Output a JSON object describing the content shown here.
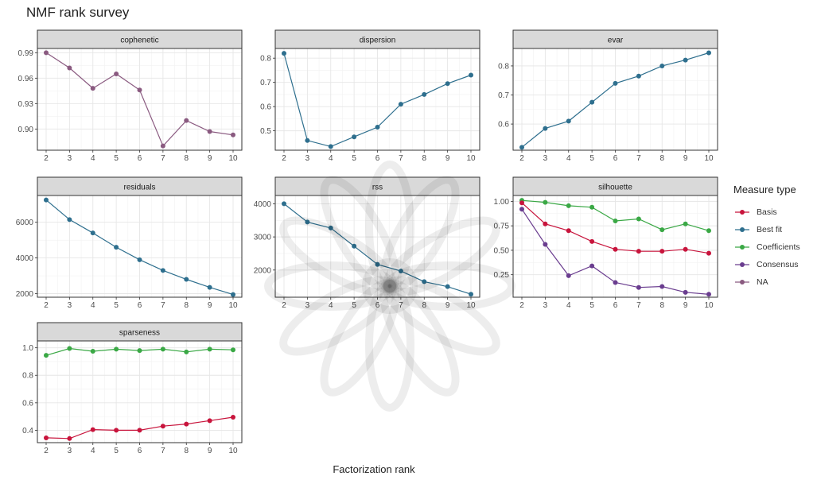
{
  "chart_data": {
    "type": "line",
    "title": "NMF rank survey",
    "xlabel": "Factorization rank",
    "x": [
      2,
      3,
      4,
      5,
      6,
      7,
      8,
      9,
      10
    ],
    "legend": {
      "title": "Measure type",
      "position": "right",
      "entries": [
        {
          "name": "Basis",
          "color": "#c8143c"
        },
        {
          "name": "Best fit",
          "color": "#2e6f8e"
        },
        {
          "name": "Coefficients",
          "color": "#3aa845"
        },
        {
          "name": "Consensus",
          "color": "#6a3d8f"
        },
        {
          "name": "NA",
          "color": "#8a5a80"
        }
      ]
    },
    "grid": true,
    "panels": [
      {
        "name": "cophenetic",
        "ylim": [
          0.875,
          0.995
        ],
        "yticks": [
          0.9,
          0.93,
          0.96,
          0.99
        ],
        "yticklabels": [
          "0.90",
          "0.93",
          "0.96",
          "0.99"
        ],
        "series": [
          {
            "type": "NA",
            "values": [
              0.99,
              0.972,
              0.948,
              0.965,
              0.946,
              0.88,
              0.91,
              0.897,
              0.893
            ]
          }
        ]
      },
      {
        "name": "dispersion",
        "ylim": [
          0.42,
          0.84
        ],
        "yticks": [
          0.5,
          0.6,
          0.7,
          0.8
        ],
        "yticklabels": [
          "0.5",
          "0.6",
          "0.7",
          "0.8"
        ],
        "series": [
          {
            "type": "Best fit",
            "values": [
              0.82,
              0.46,
              0.435,
              0.475,
              0.515,
              0.61,
              0.65,
              0.695,
              0.73
            ]
          }
        ]
      },
      {
        "name": "evar",
        "ylim": [
          0.51,
          0.86
        ],
        "yticks": [
          0.6,
          0.7,
          0.8
        ],
        "yticklabels": [
          "0.6",
          "0.7",
          "0.8"
        ],
        "series": [
          {
            "type": "Best fit",
            "values": [
              0.52,
              0.585,
              0.61,
              0.675,
              0.74,
              0.765,
              0.8,
              0.82,
              0.845
            ]
          }
        ]
      },
      {
        "name": "residuals",
        "ylim": [
          1800,
          7500
        ],
        "yticks": [
          2000,
          4000,
          6000
        ],
        "yticklabels": [
          "2000",
          "4000",
          "6000"
        ],
        "series": [
          {
            "type": "Best fit",
            "values": [
              7250,
              6150,
              5400,
              4600,
              3900,
              3300,
              2800,
              2350,
              1950
            ]
          }
        ]
      },
      {
        "name": "rss",
        "ylim": [
          1180,
          4250
        ],
        "yticks": [
          2000,
          3000,
          4000
        ],
        "yticklabels": [
          "2000",
          "3000",
          "4000"
        ],
        "series": [
          {
            "type": "Best fit",
            "values": [
              4000,
              3450,
              3270,
              2720,
              2170,
              1970,
              1650,
              1500,
              1270
            ]
          }
        ]
      },
      {
        "name": "silhouette",
        "ylim": [
          0.02,
          1.06
        ],
        "yticks": [
          0.25,
          0.5,
          0.75,
          1.0
        ],
        "yticklabels": [
          "0.25",
          "0.50",
          "0.75",
          "1.00"
        ],
        "series": [
          {
            "type": "Coefficients",
            "values": [
              1.01,
              0.99,
              0.955,
              0.94,
              0.8,
              0.82,
              0.71,
              0.77,
              0.7
            ]
          },
          {
            "type": "Basis",
            "values": [
              0.985,
              0.77,
              0.7,
              0.59,
              0.51,
              0.49,
              0.49,
              0.51,
              0.47
            ]
          },
          {
            "type": "Consensus",
            "values": [
              0.92,
              0.56,
              0.24,
              0.34,
              0.17,
              0.12,
              0.13,
              0.07,
              0.05
            ]
          }
        ]
      },
      {
        "name": "sparseness",
        "ylim": [
          0.31,
          1.05
        ],
        "yticks": [
          0.4,
          0.6,
          0.8,
          1.0
        ],
        "yticklabels": [
          "0.4",
          "0.6",
          "0.8",
          "1.0"
        ],
        "series": [
          {
            "type": "Coefficients",
            "values": [
              0.945,
              0.995,
              0.975,
              0.99,
              0.98,
              0.99,
              0.97,
              0.99,
              0.985
            ]
          },
          {
            "type": "Basis",
            "values": [
              0.345,
              0.34,
              0.405,
              0.4,
              0.4,
              0.43,
              0.445,
              0.47,
              0.495
            ]
          }
        ]
      }
    ]
  }
}
